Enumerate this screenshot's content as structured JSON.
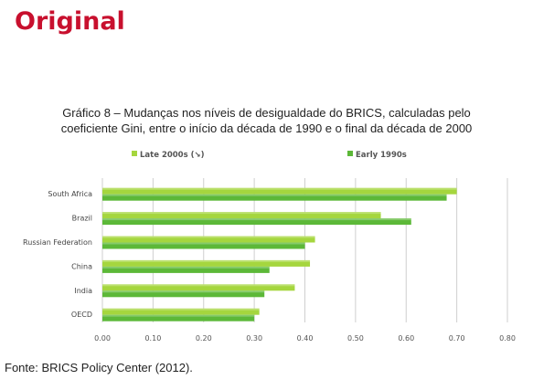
{
  "heading": "Original",
  "caption": {
    "line1": "Gráfico 8 – Mudanças nos níveis de desigualdade do BRICS, calculadas pelo",
    "line2": "coeficiente Gini, entre o início da década de 1990 e o final da década de 2000"
  },
  "source": "Fonte: BRICS Policy Center (2012).",
  "colors": {
    "late": "#a5d63e",
    "early": "#5cb838",
    "grid": "#cfcfcf"
  },
  "chart_data": {
    "type": "bar",
    "orientation": "horizontal",
    "categories": [
      "South Africa",
      "Brazil",
      "Russian Federation",
      "China",
      "India",
      "OECD"
    ],
    "series": [
      {
        "name": "Late 2000s (↘)",
        "values": [
          0.7,
          0.55,
          0.42,
          0.41,
          0.38,
          0.31
        ]
      },
      {
        "name": "Early 1990s",
        "values": [
          0.68,
          0.61,
          0.4,
          0.33,
          0.32,
          0.3
        ]
      }
    ],
    "xlim": [
      0,
      0.8
    ],
    "xticks": [
      "0.00",
      "0.10",
      "0.20",
      "0.30",
      "0.40",
      "0.50",
      "0.60",
      "0.70",
      "0.80"
    ],
    "grid": true,
    "legend": "top-center"
  }
}
